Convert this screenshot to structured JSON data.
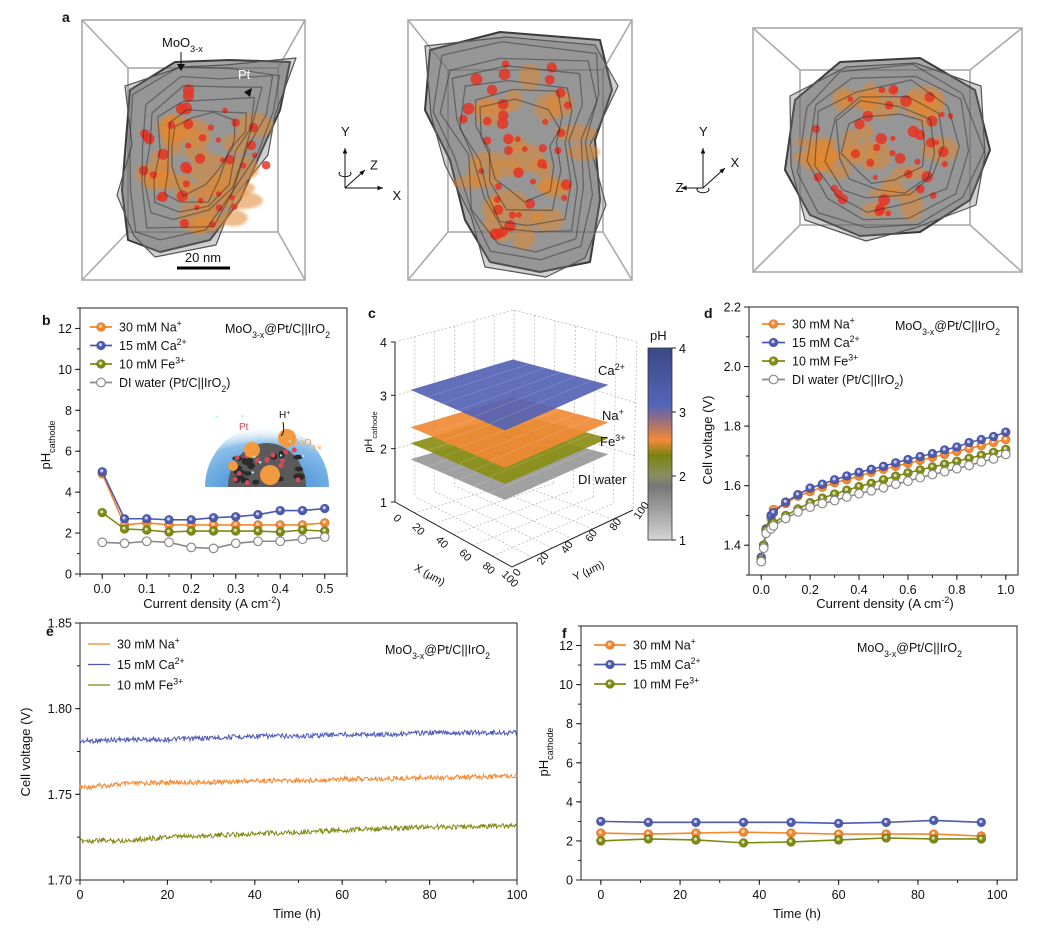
{
  "panel_letters": [
    "a",
    "b",
    "c",
    "d",
    "e",
    "f"
  ],
  "panel_a": {
    "moo3_label": [
      {
        "t": "MoO"
      },
      {
        "t": "3-x",
        "sub": true
      }
    ],
    "pt_label": "Pt",
    "scale_bar": "20 nm",
    "axes_left": {
      "x": "X",
      "y": "Y",
      "z": "Z"
    },
    "axes_right": {
      "x": "X",
      "y": "Y",
      "z": "Z"
    }
  },
  "inset_b": {
    "h_plus": [
      {
        "t": "H"
      },
      {
        "t": "+",
        "sup": true
      }
    ],
    "pt": "Pt",
    "moo3": [
      {
        "t": "MoO"
      },
      {
        "t": "3-x",
        "sub": true
      }
    ]
  },
  "chart_data": [
    {
      "id": "b",
      "type": "line",
      "xlabel": [
        {
          "t": "Current density (A cm"
        },
        {
          "t": "-2",
          "sup": true
        },
        {
          "t": ")"
        }
      ],
      "ylabel": [
        {
          "t": "pH"
        },
        {
          "t": "cathode",
          "sub": true
        }
      ],
      "xlim": [
        -0.05,
        0.55
      ],
      "ylim": [
        0,
        13
      ],
      "xticks": [
        "0.0",
        "0.1",
        "0.2",
        "0.3",
        "0.4",
        "0.5"
      ],
      "yticks": [
        "0",
        "2",
        "4",
        "6",
        "8",
        "10",
        "12"
      ],
      "annotation": [
        {
          "t": "MoO"
        },
        {
          "t": "3-x",
          "sub": true
        },
        {
          "t": "@Pt/C||IrO"
        },
        {
          "t": "2",
          "sub": true
        }
      ],
      "x": [
        0,
        0.05,
        0.1,
        0.15,
        0.2,
        0.25,
        0.3,
        0.35,
        0.4,
        0.45,
        0.5
      ],
      "series": [
        {
          "name": [
            {
              "t": "30 mM Na"
            },
            {
              "t": "+",
              "sup": true
            }
          ],
          "color": "#f5872d",
          "marker": "filled",
          "y": [
            4.9,
            2.4,
            2.5,
            2.4,
            2.4,
            2.4,
            2.4,
            2.4,
            2.4,
            2.4,
            2.5
          ]
        },
        {
          "name": [
            {
              "t": "15 mM Ca"
            },
            {
              "t": "2+",
              "sup": true
            }
          ],
          "color": "#4c5ab4",
          "marker": "filled",
          "y": [
            5.0,
            2.7,
            2.7,
            2.65,
            2.65,
            2.75,
            2.8,
            2.9,
            3.1,
            3.1,
            3.2
          ]
        },
        {
          "name": [
            {
              "t": "10 mM Fe"
            },
            {
              "t": "3+",
              "sup": true
            }
          ],
          "color": "#7f8a10",
          "marker": "filled",
          "y": [
            3.0,
            2.2,
            2.15,
            2.05,
            2.1,
            2.1,
            2.1,
            2.1,
            2.05,
            2.15,
            2.1
          ]
        },
        {
          "name": [
            {
              "t": "DI water (Pt/C||IrO"
            },
            {
              "t": "2",
              "sub": true
            },
            {
              "t": ")"
            }
          ],
          "color": "#8a8a8a",
          "marker": "open",
          "y": [
            1.55,
            1.5,
            1.6,
            1.55,
            1.3,
            1.25,
            1.5,
            1.6,
            1.6,
            1.7,
            1.8
          ]
        }
      ]
    },
    {
      "id": "c",
      "type": "surface",
      "zlabel": [
        {
          "t": "pH"
        },
        {
          "t": "cathode",
          "sub": true
        }
      ],
      "xlabel": "X (μm)",
      "ylabel": "Y (μm)",
      "zticks": [
        "1",
        "2",
        "3",
        "4"
      ],
      "xticks": [
        "0",
        "20",
        "40",
        "60",
        "80",
        "100"
      ],
      "yticks": [
        "0",
        "20",
        "40",
        "60",
        "80",
        "100"
      ],
      "layers": [
        {
          "name": [
            {
              "t": "Ca"
            },
            {
              "t": "2+",
              "sup": true
            }
          ],
          "pH": 3.1,
          "color": "#5563b5"
        },
        {
          "name": [
            {
              "t": "Na"
            },
            {
              "t": "+",
              "sup": true
            }
          ],
          "pH": 2.4,
          "color": "#f08a35"
        },
        {
          "name": [
            {
              "t": "Fe"
            },
            {
              "t": "3+",
              "sup": true
            }
          ],
          "pH": 2.1,
          "color": "#8a8f15"
        },
        {
          "name": [
            {
              "t": "DI water"
            }
          ],
          "pH": 1.8,
          "color": "#9a9a9a"
        }
      ],
      "colorbar": {
        "title": "pH",
        "ticks": [
          "1",
          "2",
          "3",
          "4"
        ],
        "range": [
          1,
          4
        ]
      }
    },
    {
      "id": "d",
      "type": "line",
      "xlabel": [
        {
          "t": "Current density (A cm"
        },
        {
          "t": "-2",
          "sup": true
        },
        {
          "t": ")"
        }
      ],
      "ylabel": [
        {
          "t": "Cell voltage (V)"
        }
      ],
      "xlim": [
        -0.05,
        1.05
      ],
      "ylim": [
        1.3,
        2.2
      ],
      "xticks": [
        "0.0",
        "0.2",
        "0.4",
        "0.6",
        "0.8",
        "1.0"
      ],
      "yticks": [
        "1.4",
        "1.6",
        "1.8",
        "2.0",
        "2.2"
      ],
      "annotation": [
        {
          "t": "MoO"
        },
        {
          "t": "3-x",
          "sub": true
        },
        {
          "t": "@Pt/C||IrO"
        },
        {
          "t": "2",
          "sub": true
        }
      ],
      "x": [
        0,
        0.01,
        0.02,
        0.04,
        0.05,
        0.1,
        0.15,
        0.2,
        0.25,
        0.3,
        0.35,
        0.4,
        0.45,
        0.5,
        0.55,
        0.6,
        0.65,
        0.7,
        0.75,
        0.8,
        0.85,
        0.9,
        0.95,
        1.0
      ],
      "series": [
        {
          "name": [
            {
              "t": "30 mM Na"
            },
            {
              "t": "+",
              "sup": true
            }
          ],
          "color": "#f5872d",
          "marker": "filled",
          "y": [
            1.35,
            1.4,
            1.45,
            1.49,
            1.52,
            1.54,
            1.565,
            1.58,
            1.595,
            1.61,
            1.62,
            1.632,
            1.645,
            1.655,
            1.665,
            1.675,
            1.685,
            1.695,
            1.705,
            1.715,
            1.725,
            1.735,
            1.745,
            1.755
          ]
        },
        {
          "name": [
            {
              "t": "15 mM Ca"
            },
            {
              "t": "2+",
              "sup": true
            }
          ],
          "color": "#4c5ab4",
          "marker": "filled",
          "y": [
            1.36,
            1.4,
            1.455,
            1.5,
            1.51,
            1.545,
            1.57,
            1.592,
            1.605,
            1.62,
            1.633,
            1.645,
            1.655,
            1.665,
            1.677,
            1.688,
            1.698,
            1.708,
            1.72,
            1.73,
            1.745,
            1.755,
            1.765,
            1.78
          ]
        },
        {
          "name": [
            {
              "t": "10 mM Fe"
            },
            {
              "t": "3+",
              "sup": true
            }
          ],
          "color": "#7f8a10",
          "marker": "filled",
          "y": [
            1.35,
            1.4,
            1.45,
            1.465,
            1.475,
            1.5,
            1.522,
            1.543,
            1.558,
            1.572,
            1.585,
            1.597,
            1.608,
            1.62,
            1.632,
            1.643,
            1.653,
            1.663,
            1.672,
            1.682,
            1.692,
            1.702,
            1.712,
            1.722
          ]
        },
        {
          "name": [
            {
              "t": "DI water (Pt/C||IrO"
            },
            {
              "t": "2",
              "sub": true
            },
            {
              "t": ")"
            }
          ],
          "color": "#8a8a8a",
          "marker": "open",
          "y": [
            1.345,
            1.39,
            1.44,
            1.455,
            1.465,
            1.49,
            1.512,
            1.528,
            1.54,
            1.55,
            1.562,
            1.573,
            1.583,
            1.593,
            1.605,
            1.615,
            1.627,
            1.637,
            1.647,
            1.657,
            1.668,
            1.68,
            1.69,
            1.705
          ]
        }
      ]
    },
    {
      "id": "e",
      "type": "line",
      "xlabel": [
        {
          "t": "Time (h)"
        }
      ],
      "ylabel": [
        {
          "t": "Cell voltage (V)"
        }
      ],
      "xlim": [
        0,
        100
      ],
      "ylim": [
        1.7,
        1.85
      ],
      "xticks": [
        "0",
        "20",
        "40",
        "60",
        "80",
        "100"
      ],
      "yticks": [
        "1.70",
        "1.75",
        "1.80",
        "1.85"
      ],
      "annotation": [
        {
          "t": "MoO"
        },
        {
          "t": "3-x",
          "sub": true
        },
        {
          "t": "@Pt/C||IrO"
        },
        {
          "t": "2",
          "sub": true
        }
      ],
      "x": [
        0,
        10,
        20,
        30,
        40,
        50,
        60,
        70,
        80,
        90,
        100
      ],
      "series": [
        {
          "name": [
            {
              "t": "30 mM Na"
            },
            {
              "t": "+",
              "sup": true
            }
          ],
          "color": "#f5872d",
          "marker": "none",
          "y": [
            1.754,
            1.756,
            1.757,
            1.757,
            1.758,
            1.758,
            1.759,
            1.759,
            1.76,
            1.76,
            1.761
          ]
        },
        {
          "name": [
            {
              "t": "15 mM Ca"
            },
            {
              "t": "2+",
              "sup": true
            }
          ],
          "color": "#4c5ab4",
          "marker": "none",
          "y": [
            1.781,
            1.782,
            1.782,
            1.783,
            1.784,
            1.784,
            1.785,
            1.785,
            1.786,
            1.786,
            1.786
          ]
        },
        {
          "name": [
            {
              "t": "10 mM Fe"
            },
            {
              "t": "3+",
              "sup": true
            }
          ],
          "color": "#7f8a10",
          "marker": "none",
          "y": [
            1.723,
            1.723,
            1.725,
            1.726,
            1.727,
            1.728,
            1.729,
            1.73,
            1.731,
            1.731,
            1.732
          ]
        }
      ]
    },
    {
      "id": "f",
      "type": "line",
      "xlabel": [
        {
          "t": "Time (h)"
        }
      ],
      "ylabel": [
        {
          "t": "pH"
        },
        {
          "t": "cathode",
          "sub": true
        }
      ],
      "xlim": [
        -5,
        105
      ],
      "ylim": [
        0,
        13
      ],
      "xticks": [
        "0",
        "20",
        "40",
        "60",
        "80",
        "100"
      ],
      "yticks": [
        "0",
        "2",
        "4",
        "6",
        "8",
        "10",
        "12"
      ],
      "annotation": [
        {
          "t": "MoO"
        },
        {
          "t": "3-x",
          "sub": true
        },
        {
          "t": "@Pt/C||IrO"
        },
        {
          "t": "2",
          "sub": true
        }
      ],
      "x": [
        0,
        12,
        24,
        36,
        48,
        60,
        72,
        84,
        96
      ],
      "series": [
        {
          "name": [
            {
              "t": "30 mM Na"
            },
            {
              "t": "+",
              "sup": true
            }
          ],
          "color": "#f5872d",
          "marker": "filled",
          "y": [
            2.4,
            2.35,
            2.4,
            2.45,
            2.4,
            2.35,
            2.35,
            2.35,
            2.25
          ]
        },
        {
          "name": [
            {
              "t": "15 mM Ca"
            },
            {
              "t": "2+",
              "sup": true
            }
          ],
          "color": "#4c5ab4",
          "marker": "filled",
          "y": [
            3.0,
            2.95,
            2.95,
            2.95,
            2.95,
            2.9,
            2.95,
            3.05,
            2.95
          ]
        },
        {
          "name": [
            {
              "t": "10 mM Fe"
            },
            {
              "t": "3+",
              "sup": true
            }
          ],
          "color": "#7f8a10",
          "marker": "filled",
          "y": [
            2.0,
            2.1,
            2.05,
            1.9,
            1.95,
            2.05,
            2.15,
            2.1,
            2.1
          ]
        }
      ]
    }
  ]
}
